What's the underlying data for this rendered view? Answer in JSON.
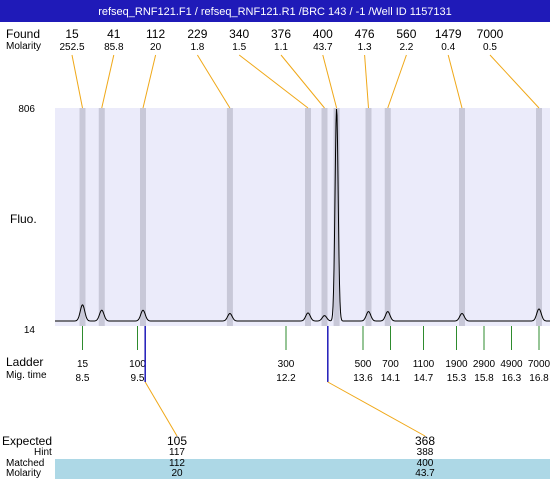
{
  "header": {
    "title": "refseq_RNF121.F1 / refseq_RNF121.R1 /BRC 143 / -1 /Well ID 1157131",
    "found_label": "Found",
    "molarity_label": "Molarity",
    "fluo_label": "Fluo.",
    "ladder_label": "Ladder",
    "migtime_label": "Mig. time"
  },
  "chart_data": {
    "type": "line",
    "ylim": [
      14,
      806
    ],
    "y_ticks": [
      "806",
      "14"
    ],
    "ylabel": "Fluo.",
    "xlim": [
      8.0,
      17.0
    ],
    "found_peaks": [
      {
        "size": "15",
        "molarity": "252.5",
        "time": 8.5,
        "height": 60
      },
      {
        "size": "41",
        "molarity": "85.8",
        "time": 8.85,
        "height": 40
      },
      {
        "size": "112",
        "molarity": "20",
        "time": 9.6,
        "height": 40
      },
      {
        "size": "229",
        "molarity": "1.8",
        "time": 11.18,
        "height": 28
      },
      {
        "size": "340",
        "molarity": "1.5",
        "time": 12.6,
        "height": 30
      },
      {
        "size": "376",
        "molarity": "1.1",
        "time": 12.9,
        "height": 20
      },
      {
        "size": "400",
        "molarity": "43.7",
        "time": 13.12,
        "height": 790
      },
      {
        "size": "476",
        "molarity": "1.3",
        "time": 13.7,
        "height": 35
      },
      {
        "size": "560",
        "molarity": "2.2",
        "time": 14.05,
        "height": 35
      },
      {
        "size": "1479",
        "molarity": "0.4",
        "time": 15.4,
        "height": 28
      },
      {
        "size": "7000",
        "molarity": "0.5",
        "time": 16.8,
        "height": 45
      }
    ],
    "ladder": [
      {
        "size": "15",
        "time": "8.5",
        "t": 8.5
      },
      {
        "size": "100",
        "time": "9.5",
        "t": 9.5
      },
      {
        "size": "300",
        "time": "12.2",
        "t": 12.2
      },
      {
        "size": "500",
        "time": "13.6",
        "t": 13.6
      },
      {
        "size": "700",
        "time": "14.1",
        "t": 14.1
      },
      {
        "size": "1100",
        "time": "14.7",
        "t": 14.7
      },
      {
        "size": "1900",
        "time": "15.3",
        "t": 15.3
      },
      {
        "size": "2900",
        "time": "15.8",
        "t": 15.8
      },
      {
        "size": "4900",
        "time": "16.3",
        "t": 16.3
      },
      {
        "size": "7000",
        "time": "16.8",
        "t": 16.8
      }
    ],
    "expected_markers": [
      9.64,
      12.96
    ]
  },
  "expected_table": {
    "labels": {
      "expected": "Expected",
      "hint": "Hint",
      "matched": "Matched",
      "molarity": "Molarity"
    },
    "columns": [
      {
        "expected": "105",
        "hint": "117",
        "matched": "112",
        "molarity": "20"
      },
      {
        "expected": "368",
        "hint": "388",
        "matched": "400",
        "molarity": "43.7"
      }
    ]
  },
  "colors": {
    "title_bg": "#1f1ab8",
    "plot_bg": "#ebebfa",
    "peak_band": "#c8c8d8",
    "connector": "#f0a818",
    "ladder_tick": "#2e8b2e",
    "expected_tick": "#1f1ab8",
    "matched_row_bg": "#add8e6"
  }
}
